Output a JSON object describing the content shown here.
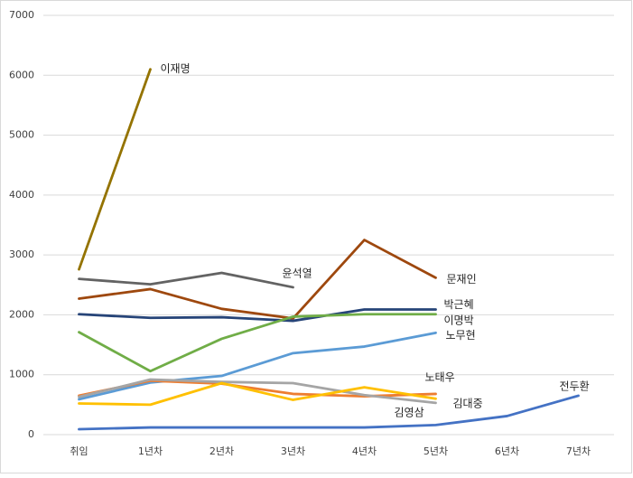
{
  "chart_data": {
    "type": "line",
    "categories": [
      "취임",
      "1년차",
      "2년차",
      "3년차",
      "4년차",
      "5년차",
      "6년차",
      "7년차"
    ],
    "ylim": [
      0,
      7000
    ],
    "yticks": [
      0,
      1000,
      2000,
      3000,
      4000,
      5000,
      6000,
      7000
    ],
    "grid": true,
    "series": [
      {
        "name": "이재명",
        "color": "#947300",
        "values": [
          2760,
          6100,
          null,
          null,
          null,
          null,
          null,
          null
        ]
      },
      {
        "name": "윤석열",
        "color": "#636363",
        "values": [
          2600,
          2510,
          2700,
          2460,
          null,
          null,
          null,
          null
        ]
      },
      {
        "name": "문재인",
        "color": "#9e480e",
        "values": [
          2270,
          2430,
          2100,
          1940,
          3250,
          2620,
          null,
          null
        ]
      },
      {
        "name": "박근혜",
        "color": "#264478",
        "values": [
          2010,
          1950,
          1960,
          1900,
          2090,
          2090,
          null,
          null
        ]
      },
      {
        "name": "이명박",
        "color": "#70ad47",
        "values": [
          1710,
          1060,
          1600,
          1970,
          2010,
          2010,
          null,
          null
        ]
      },
      {
        "name": "노무현",
        "color": "#5b9bd5",
        "values": [
          590,
          870,
          980,
          1360,
          1470,
          1700,
          null,
          null
        ]
      },
      {
        "name": "노태우",
        "color": "#ed7d31",
        "values": [
          650,
          900,
          850,
          680,
          640,
          680,
          null,
          null
        ]
      },
      {
        "name": "김대중",
        "color": "#a5a5a5",
        "values": [
          630,
          920,
          880,
          860,
          660,
          530,
          null,
          null
        ]
      },
      {
        "name": "김영삼",
        "color": "#ffc000",
        "values": [
          520,
          500,
          860,
          580,
          790,
          600,
          null,
          null
        ]
      },
      {
        "name": "전두환",
        "color": "#4472c4",
        "values": [
          90,
          120,
          120,
          120,
          120,
          160,
          310,
          650
        ]
      }
    ]
  }
}
